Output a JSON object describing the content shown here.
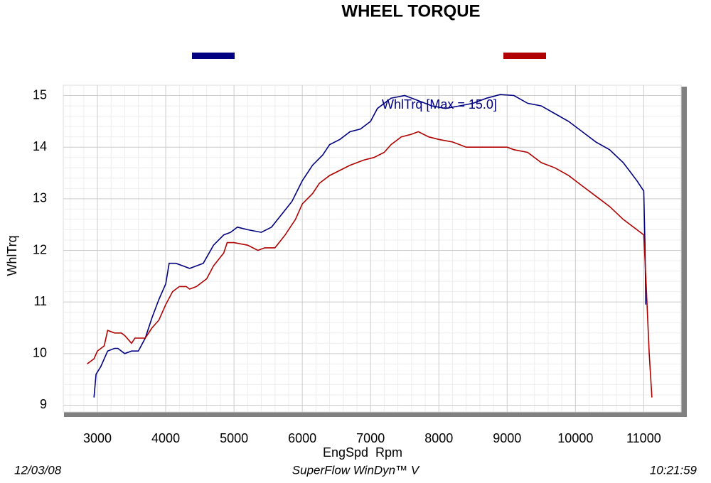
{
  "chart_data": {
    "type": "line",
    "title": "WHEEL TORQUE",
    "x_label": "EngSpd  Rpm",
    "y_label": "WhlTrq",
    "annotation": "WhlTrq [Max = 15.0]",
    "footer": {
      "date": "12/03/08",
      "software": "SuperFlow WinDyn™ V",
      "time": "10:21:59"
    },
    "xlim": [
      2500,
      11600
    ],
    "xticks": [
      3000,
      4000,
      5000,
      6000,
      7000,
      8000,
      9000,
      10000,
      11000
    ],
    "ylim": [
      8.8,
      15.2
    ],
    "yticks": [
      9,
      10,
      11,
      12,
      13,
      14,
      15
    ],
    "grid": true,
    "series": [
      {
        "color": "#000080",
        "x": [
          2950,
          2980,
          3050,
          3150,
          3250,
          3300,
          3400,
          3500,
          3600,
          3700,
          3800,
          3900,
          4000,
          4050,
          4150,
          4250,
          4350,
          4550,
          4700,
          4850,
          4950,
          5050,
          5200,
          5400,
          5550,
          5700,
          5850,
          6000,
          6150,
          6300,
          6400,
          6550,
          6700,
          6850,
          7000,
          7100,
          7300,
          7500,
          7700,
          7900,
          8100,
          8300,
          8500,
          8700,
          8900,
          9100,
          9300,
          9500,
          9700,
          9900,
          10100,
          10300,
          10500,
          10700,
          10900,
          11000,
          11020,
          11030
        ],
        "values": [
          9.15,
          9.6,
          9.75,
          10.05,
          10.1,
          10.1,
          10.0,
          10.05,
          10.05,
          10.3,
          10.7,
          11.05,
          11.35,
          11.75,
          11.75,
          11.7,
          11.65,
          11.75,
          12.1,
          12.3,
          12.35,
          12.45,
          12.4,
          12.35,
          12.45,
          12.7,
          12.95,
          13.35,
          13.65,
          13.85,
          14.05,
          14.15,
          14.3,
          14.35,
          14.5,
          14.75,
          14.95,
          15.0,
          14.9,
          14.8,
          14.75,
          14.8,
          14.85,
          14.95,
          15.02,
          15.0,
          14.85,
          14.8,
          14.65,
          14.5,
          14.3,
          14.1,
          13.95,
          13.7,
          13.35,
          13.15,
          12.0,
          10.95
        ]
      },
      {
        "color": "#b00000",
        "x": [
          2850,
          2950,
          3000,
          3100,
          3150,
          3250,
          3350,
          3400,
          3500,
          3550,
          3700,
          3800,
          3900,
          4000,
          4100,
          4200,
          4300,
          4350,
          4450,
          4600,
          4700,
          4850,
          4900,
          5000,
          5200,
          5350,
          5450,
          5600,
          5750,
          5900,
          6000,
          6150,
          6250,
          6400,
          6550,
          6700,
          6900,
          7050,
          7200,
          7300,
          7450,
          7600,
          7700,
          7850,
          8000,
          8200,
          8400,
          8600,
          8800,
          9000,
          9100,
          9300,
          9500,
          9700,
          9900,
          10100,
          10300,
          10500,
          10700,
          10900,
          11000,
          11030,
          11080,
          11120
        ],
        "values": [
          9.8,
          9.9,
          10.05,
          10.15,
          10.45,
          10.4,
          10.4,
          10.35,
          10.2,
          10.3,
          10.3,
          10.5,
          10.65,
          10.95,
          11.2,
          11.3,
          11.3,
          11.25,
          11.3,
          11.45,
          11.7,
          11.95,
          12.15,
          12.15,
          12.1,
          12.0,
          12.05,
          12.05,
          12.3,
          12.6,
          12.9,
          13.1,
          13.3,
          13.45,
          13.55,
          13.65,
          13.75,
          13.8,
          13.9,
          14.05,
          14.2,
          14.25,
          14.3,
          14.2,
          14.15,
          14.1,
          14.0,
          14.0,
          14.0,
          14.0,
          13.95,
          13.9,
          13.7,
          13.6,
          13.45,
          13.25,
          13.05,
          12.85,
          12.6,
          12.4,
          12.3,
          11.5,
          10.0,
          9.15
        ]
      }
    ]
  }
}
